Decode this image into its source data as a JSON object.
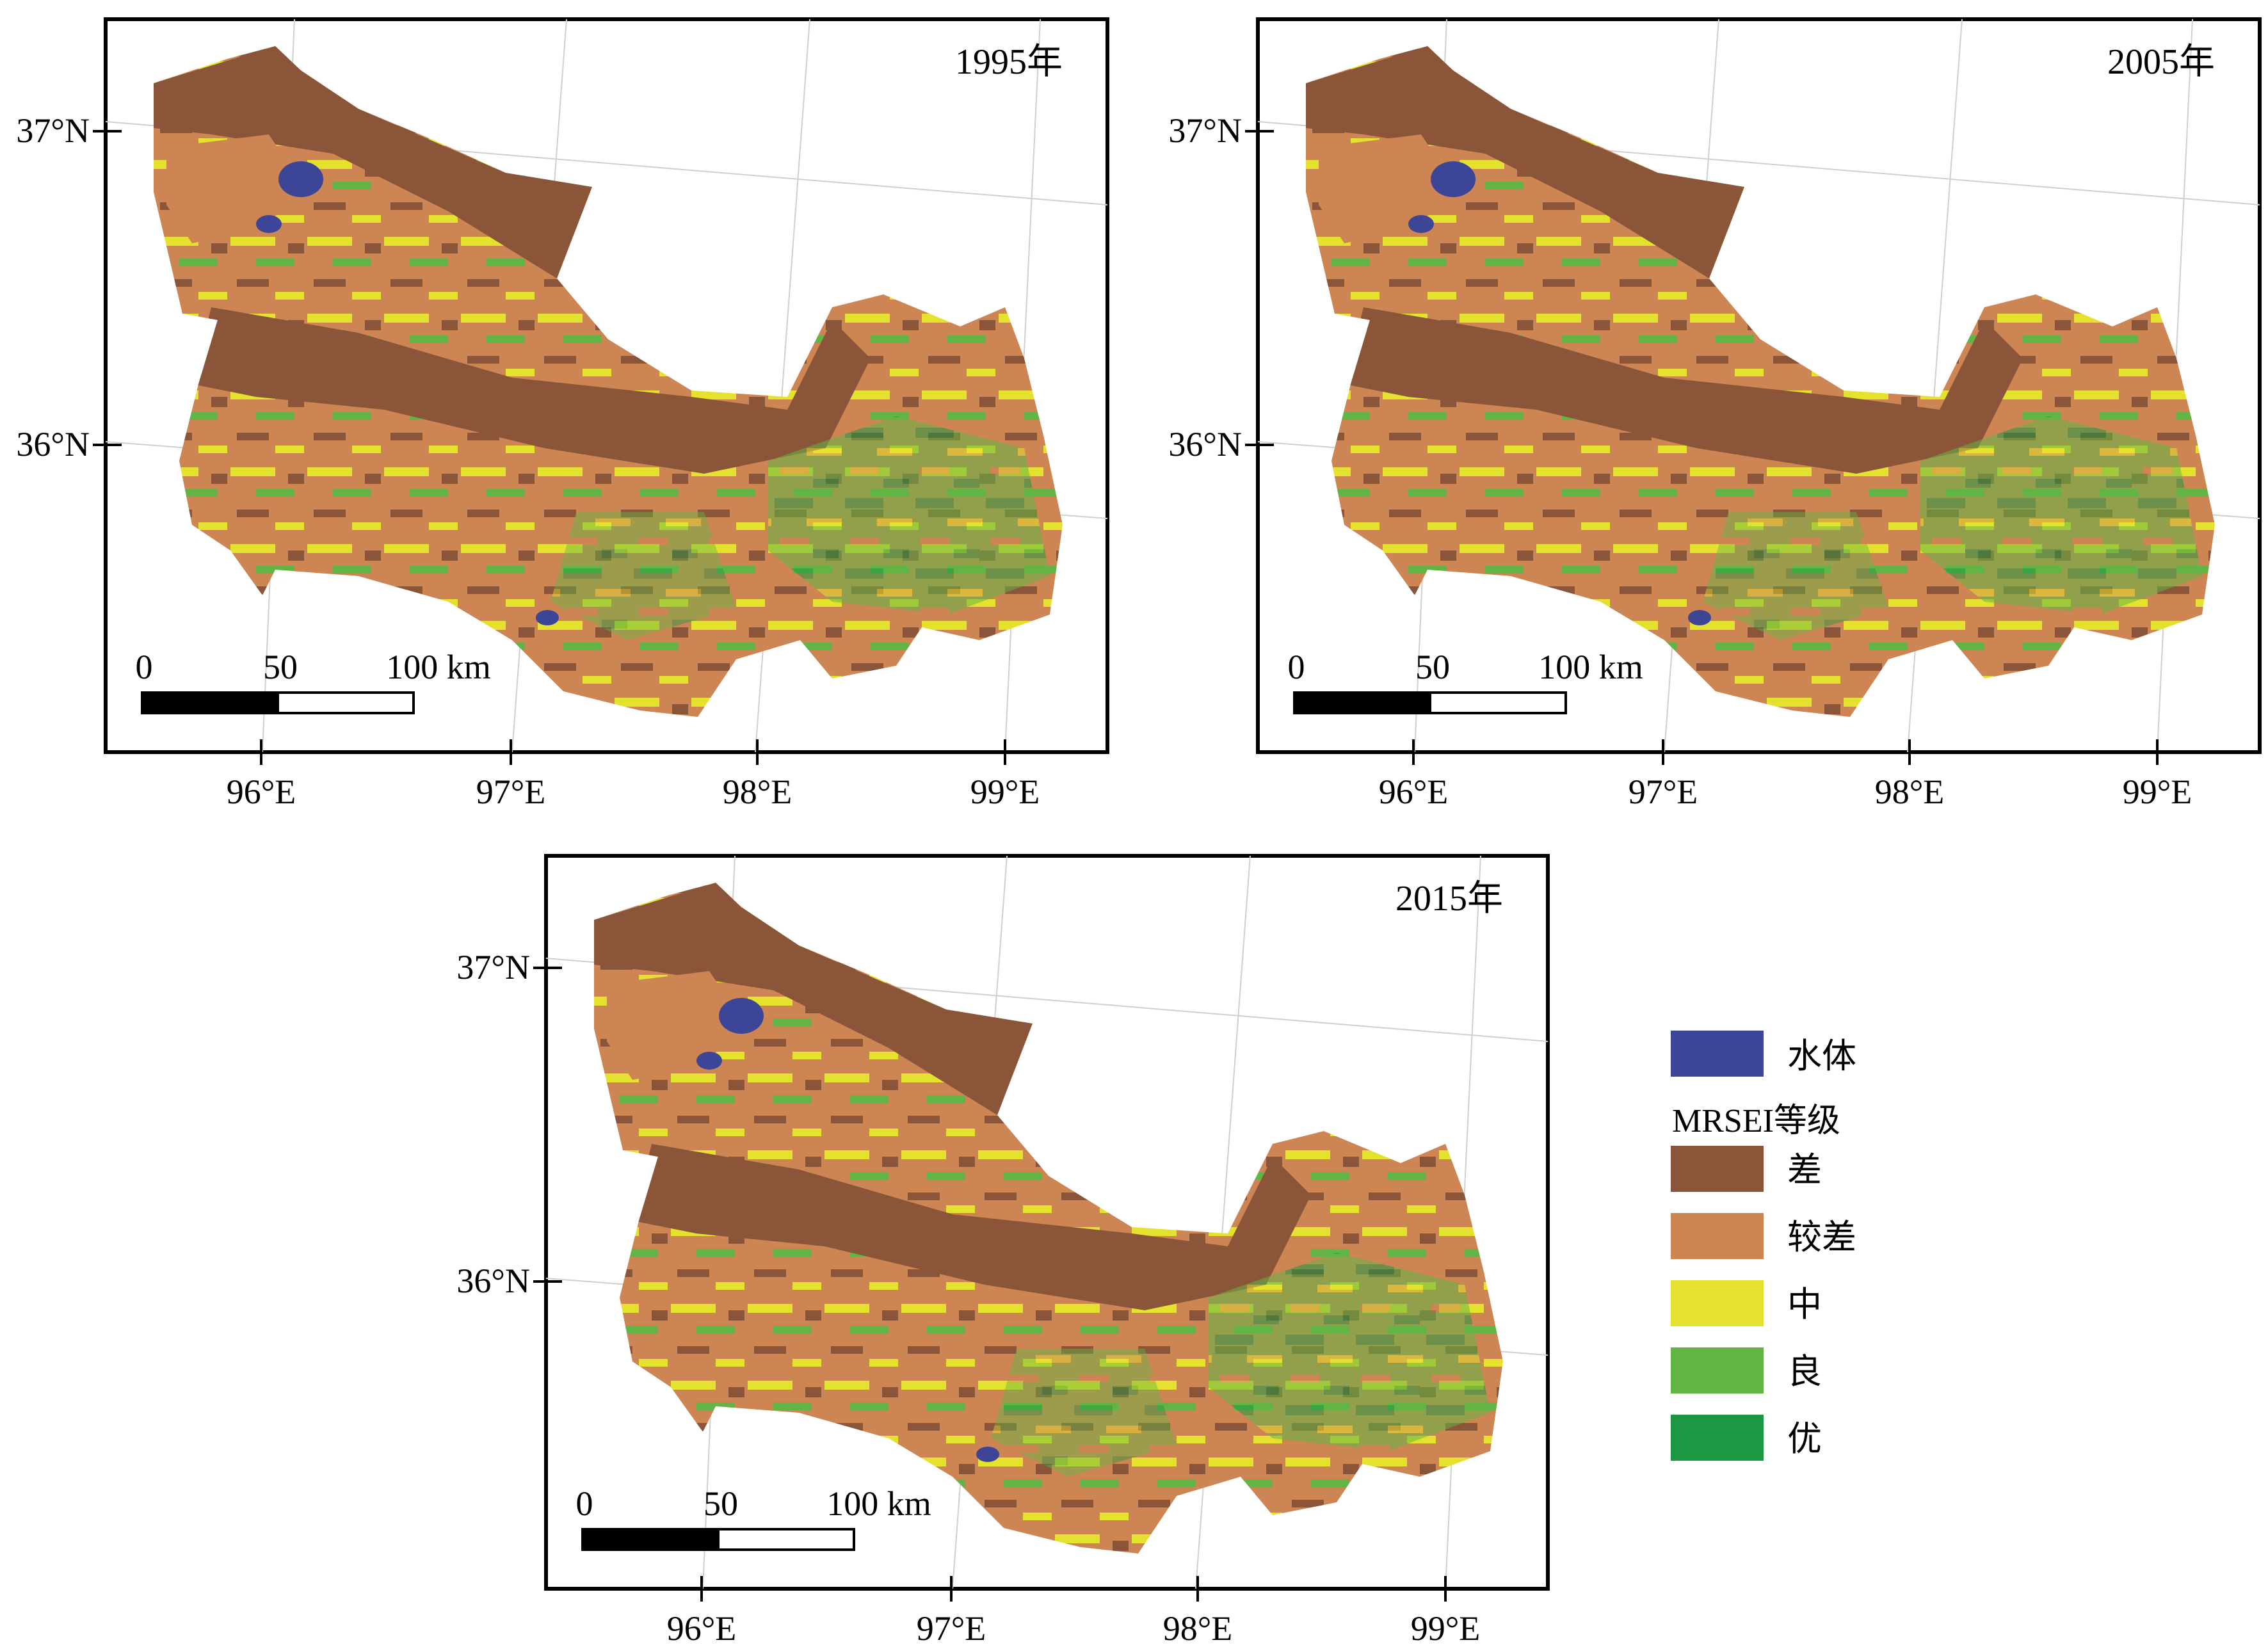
{
  "maps": [
    {
      "year_label": "1995年"
    },
    {
      "year_label": "2005年"
    },
    {
      "year_label": "2015年"
    }
  ],
  "axes": {
    "lat_labels": [
      "37°N",
      "36°N"
    ],
    "lon_labels": [
      "96°E",
      "97°E",
      "98°E",
      "99°E"
    ]
  },
  "scalebar": {
    "labels": [
      "0",
      "50",
      "100 km"
    ]
  },
  "legend": {
    "water": {
      "label": "水体",
      "color": "#3d4597"
    },
    "title": "MRSEI等级",
    "classes": [
      {
        "label": "差",
        "color": "#8a5538"
      },
      {
        "label": "较差",
        "color": "#cd8553"
      },
      {
        "label": "中",
        "color": "#e5e22f"
      },
      {
        "label": "良",
        "color": "#62b544"
      },
      {
        "label": "优",
        "color": "#1c9743"
      }
    ]
  }
}
